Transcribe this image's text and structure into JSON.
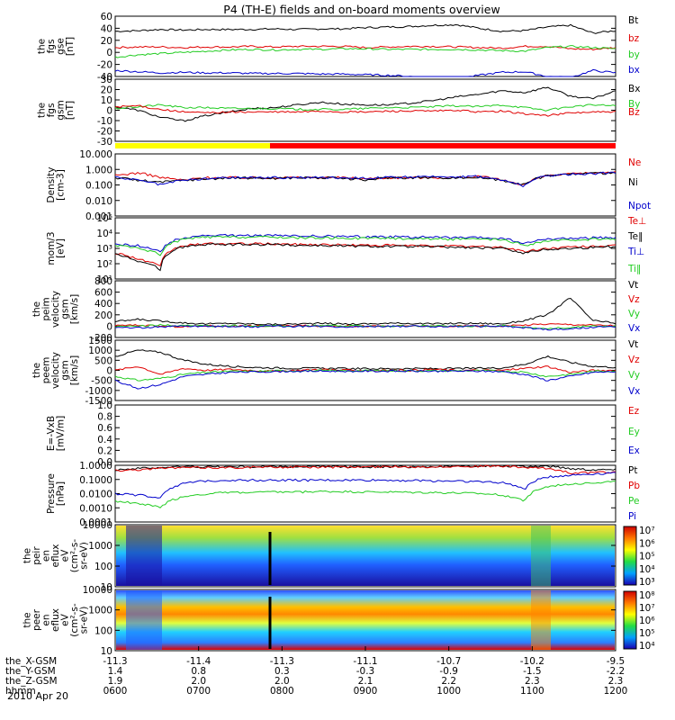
{
  "title": "P4 (TH-E) fields and on-board moments overview",
  "date_label": "2010 Apr 20",
  "colors": {
    "black": "#000000",
    "red": "#e00000",
    "green": "#22cc22",
    "blue": "#0000cc",
    "yellow": "#ffff00"
  },
  "chart_data": [
    {
      "type": "line",
      "panel": "fgs-gse",
      "ylabel": [
        "the",
        "fgs",
        "gse",
        "[nT]"
      ],
      "yticks": [
        "60",
        "40",
        "20",
        "0",
        "-20",
        "-40"
      ],
      "ylim": [
        -40,
        60
      ],
      "series": [
        {
          "name": "Bt",
          "color": "#000000",
          "values": [
            35,
            36,
            38,
            37,
            38,
            38,
            38,
            39,
            38,
            39,
            39,
            41,
            42,
            43,
            45,
            46,
            40,
            35,
            36,
            42,
            45,
            32,
            36
          ]
        },
        {
          "name": "bz",
          "color": "#e00000",
          "values": [
            8,
            9,
            9,
            8,
            9,
            9,
            10,
            9,
            10,
            10,
            10,
            8,
            9,
            10,
            10,
            9,
            8,
            7,
            10,
            10,
            6,
            5,
            8
          ]
        },
        {
          "name": "by",
          "color": "#22cc22",
          "values": [
            -8,
            -4,
            -2,
            0,
            2,
            4,
            5,
            4,
            5,
            5,
            6,
            6,
            5,
            5,
            5,
            5,
            4,
            3,
            2,
            8,
            10,
            8,
            6
          ]
        },
        {
          "name": "bx",
          "color": "#0000cc",
          "values": [
            -30,
            -32,
            -34,
            -33,
            -34,
            -34,
            -35,
            -35,
            -35,
            -36,
            -36,
            -37,
            -38,
            -40,
            -42,
            -44,
            -38,
            -33,
            -32,
            -40,
            -42,
            -30,
            -34
          ]
        }
      ]
    },
    {
      "type": "line",
      "panel": "fgs-gsm",
      "ylabel": [
        "the",
        "fgs",
        "gsm",
        "[nT]"
      ],
      "yticks": [
        "30",
        "20",
        "10",
        "0",
        "-10",
        "-20",
        "-30"
      ],
      "ylim": [
        -35,
        35
      ],
      "series": [
        {
          "name": "Bx",
          "color": "#000000",
          "values": [
            4,
            0,
            -8,
            -12,
            -6,
            -2,
            2,
            3,
            6,
            9,
            7,
            6,
            6,
            8,
            11,
            15,
            18,
            22,
            20,
            26,
            16,
            13,
            22
          ]
        },
        {
          "name": "By",
          "color": "#22cc22",
          "values": [
            2,
            4,
            6,
            3,
            3,
            2,
            2,
            2,
            1,
            1,
            1,
            2,
            3,
            3,
            4,
            5,
            4,
            6,
            3,
            0,
            4,
            6,
            5
          ]
        },
        {
          "name": "Bz",
          "color": "#e00000",
          "values": [
            4,
            5,
            1,
            -2,
            -3,
            -2,
            -2,
            -2,
            -2,
            -1,
            -2,
            -2,
            -1,
            -1,
            -1,
            0,
            -2,
            -1,
            -4,
            -6,
            -3,
            -2,
            -2
          ]
        }
      ]
    },
    {
      "type": "line",
      "panel": "density",
      "yscale": "log",
      "ylabel": [
        "Density",
        "[cm-3]"
      ],
      "yticks": [
        "10.000",
        "1.000",
        "0.100",
        "0.010",
        "0.001"
      ],
      "ylim": [
        0.001,
        10
      ],
      "series": [
        {
          "name": "Ne",
          "color": "#e00000",
          "values": [
            0.4,
            0.6,
            0.3,
            0.2,
            0.3,
            0.3,
            0.3,
            0.3,
            0.3,
            0.3,
            0.3,
            0.25,
            0.3,
            0.3,
            0.3,
            0.3,
            0.35,
            0.2,
            0.1,
            0.4,
            0.5,
            0.6,
            0.7
          ]
        },
        {
          "name": "Ni",
          "color": "#000000",
          "values": [
            0.3,
            0.2,
            0.15,
            0.2,
            0.25,
            0.28,
            0.28,
            0.27,
            0.3,
            0.29,
            0.27,
            0.2,
            0.3,
            0.3,
            0.3,
            0.3,
            0.3,
            0.2,
            0.1,
            0.4,
            0.5,
            0.55,
            0.6
          ]
        },
        {
          "name": "Npot",
          "color": "#0000cc",
          "values": [
            0.3,
            0.2,
            0.1,
            0.2,
            0.25,
            0.3,
            0.3,
            0.3,
            0.3,
            0.3,
            0.3,
            0.28,
            0.3,
            0.32,
            0.33,
            0.35,
            0.35,
            0.2,
            0.08,
            0.4,
            0.5,
            0.55,
            0.6
          ]
        }
      ]
    },
    {
      "type": "line",
      "panel": "temperature",
      "yscale": "log",
      "ylabel": [
        "mom/3",
        "[eV]"
      ],
      "yticks": [
        "10⁵",
        "10⁴",
        "10³",
        "10²",
        "10¹"
      ],
      "ylim": [
        10,
        100000
      ],
      "series": [
        {
          "name": "Te⊥",
          "color": "#e00000",
          "values": [
            500,
            200,
            60,
            1500,
            2000,
            2000,
            2000,
            2000,
            1800,
            1800,
            1700,
            1600,
            1600,
            1500,
            1500,
            1400,
            1300,
            1200,
            600,
            1000,
            1200,
            1400,
            1500
          ]
        },
        {
          "name": "Te‖",
          "color": "#000000",
          "values": [
            400,
            150,
            40,
            1300,
            1800,
            1800,
            1800,
            1800,
            1600,
            1600,
            1500,
            1400,
            1400,
            1300,
            1300,
            1200,
            1100,
            1000,
            500,
            900,
            1000,
            1200,
            1300
          ]
        },
        {
          "name": "Ti⊥",
          "color": "#0000cc",
          "values": [
            2000,
            1500,
            600,
            5000,
            7000,
            7000,
            7000,
            7000,
            6500,
            6500,
            6000,
            6000,
            6000,
            5500,
            5500,
            5000,
            5000,
            4500,
            2000,
            4000,
            4500,
            5000,
            5000
          ]
        },
        {
          "name": "Ti‖",
          "color": "#22cc22",
          "values": [
            1500,
            1000,
            400,
            4000,
            5500,
            5500,
            5500,
            5500,
            5000,
            5000,
            4800,
            4600,
            4600,
            4400,
            4400,
            4000,
            4000,
            3600,
            1500,
            3000,
            3500,
            4000,
            4000
          ]
        }
      ]
    },
    {
      "type": "line",
      "panel": "peim-velocity",
      "ylabel": [
        "the",
        "peim",
        "velocity",
        "gsm",
        "[km/s]"
      ],
      "yticks": [
        "800",
        "600",
        "400",
        "200",
        "0",
        "-200"
      ],
      "ylim": [
        -200,
        800
      ],
      "series": [
        {
          "name": "Vt",
          "color": "#000000",
          "values": [
            80,
            120,
            90,
            60,
            40,
            50,
            40,
            30,
            40,
            50,
            40,
            40,
            50,
            50,
            40,
            50,
            50,
            40,
            100,
            200,
            500,
            100,
            50
          ]
        },
        {
          "name": "Vz",
          "color": "#e00000",
          "values": [
            10,
            20,
            0,
            -10,
            10,
            0,
            5,
            0,
            10,
            0,
            5,
            0,
            0,
            5,
            0,
            0,
            5,
            0,
            20,
            40,
            30,
            20,
            10
          ]
        },
        {
          "name": "Vy",
          "color": "#22cc22",
          "values": [
            -10,
            0,
            20,
            10,
            0,
            10,
            0,
            5,
            0,
            10,
            0,
            5,
            0,
            0,
            5,
            0,
            0,
            10,
            -20,
            -40,
            -30,
            10,
            0
          ]
        },
        {
          "name": "Vx",
          "color": "#0000cc",
          "values": [
            -20,
            -30,
            -10,
            0,
            -5,
            0,
            -10,
            0,
            -5,
            0,
            -10,
            0,
            -5,
            0,
            -10,
            0,
            -5,
            0,
            -30,
            -60,
            -50,
            -20,
            -10
          ]
        }
      ]
    },
    {
      "type": "line",
      "panel": "peem-velocity",
      "ylabel": [
        "the",
        "peem",
        "velocity",
        "gsm",
        "[km/s]"
      ],
      "yticks": [
        "1500",
        "1000",
        "500",
        "0",
        "-500",
        "-1000",
        "-1500"
      ],
      "ylim": [
        -1500,
        1500
      ],
      "series": [
        {
          "name": "Vt",
          "color": "#000000",
          "values": [
            700,
            1000,
            900,
            500,
            300,
            200,
            150,
            120,
            100,
            100,
            90,
            80,
            80,
            90,
            80,
            90,
            100,
            120,
            300,
            700,
            400,
            200,
            150
          ]
        },
        {
          "name": "Vz",
          "color": "#e00000",
          "values": [
            0,
            200,
            -200,
            100,
            0,
            50,
            0,
            -50,
            0,
            50,
            0,
            0,
            0,
            0,
            50,
            0,
            0,
            0,
            100,
            200,
            -100,
            0,
            0
          ]
        },
        {
          "name": "Vy",
          "color": "#22cc22",
          "values": [
            -300,
            -500,
            -400,
            -200,
            -100,
            -50,
            -50,
            -30,
            -20,
            -20,
            -20,
            -20,
            -20,
            -20,
            -20,
            -20,
            -20,
            -30,
            -100,
            -300,
            -200,
            -50,
            -30
          ]
        },
        {
          "name": "Vx",
          "color": "#0000cc",
          "values": [
            -500,
            -900,
            -700,
            -300,
            -200,
            -100,
            -80,
            -60,
            -40,
            -40,
            -40,
            -40,
            -40,
            -40,
            -40,
            -40,
            -40,
            -60,
            -200,
            -500,
            -300,
            -100,
            -60
          ]
        }
      ]
    },
    {
      "type": "line",
      "panel": "exb",
      "ylabel": [
        "E=-VxB",
        "[mV/m]"
      ],
      "yticks": [
        "1.0",
        "0.8",
        "0.6",
        "0.4",
        "0.2",
        "0.0"
      ],
      "ylim": [
        0,
        1
      ],
      "series": [
        {
          "name": "Ez",
          "color": "#e00000",
          "values": []
        },
        {
          "name": "Ey",
          "color": "#22cc22",
          "values": []
        },
        {
          "name": "Ex",
          "color": "#0000cc",
          "values": []
        }
      ]
    },
    {
      "type": "line",
      "panel": "pressure",
      "yscale": "log",
      "ylabel": [
        "Pressure",
        "[nPa]"
      ],
      "yticks": [
        "1.0000",
        "0.1000",
        "0.0100",
        "0.0010",
        "0.0001"
      ],
      "ylim": [
        0.0001,
        1
      ],
      "series": [
        {
          "name": "Pt",
          "color": "#000000",
          "values": [
            0.5,
            0.6,
            0.7,
            0.8,
            0.8,
            0.8,
            0.8,
            0.8,
            0.8,
            0.8,
            0.8,
            0.8,
            0.8,
            0.8,
            0.8,
            0.9,
            0.9,
            0.9,
            0.8,
            0.9,
            0.6,
            0.5,
            0.5
          ]
        },
        {
          "name": "Pb",
          "color": "#e00000",
          "values": [
            0.45,
            0.5,
            0.6,
            0.7,
            0.7,
            0.7,
            0.75,
            0.75,
            0.75,
            0.75,
            0.75,
            0.78,
            0.8,
            0.8,
            0.8,
            0.85,
            0.85,
            0.88,
            0.7,
            0.6,
            0.3,
            0.3,
            0.35
          ]
        },
        {
          "name": "Pe",
          "color": "#22cc22",
          "values": [
            0.003,
            0.002,
            0.001,
            0.006,
            0.01,
            0.012,
            0.012,
            0.013,
            0.013,
            0.014,
            0.014,
            0.013,
            0.013,
            0.012,
            0.012,
            0.011,
            0.01,
            0.008,
            0.003,
            0.03,
            0.05,
            0.06,
            0.07
          ]
        },
        {
          "name": "Pi",
          "color": "#0000cc",
          "values": [
            0.01,
            0.008,
            0.005,
            0.05,
            0.08,
            0.09,
            0.09,
            0.09,
            0.09,
            0.09,
            0.09,
            0.09,
            0.09,
            0.085,
            0.08,
            0.08,
            0.07,
            0.06,
            0.02,
            0.15,
            0.2,
            0.25,
            0.3
          ]
        }
      ]
    },
    {
      "type": "heatmap",
      "panel": "peir-eflux",
      "yscale": "log",
      "ylabel": [
        "the",
        "peir",
        "en",
        "eflux",
        "eV",
        "(cm²-s-",
        "sr-eV)"
      ],
      "yticks": [
        "10000",
        "1000",
        "100",
        "10"
      ],
      "ylim": [
        10,
        30000
      ],
      "colorbar_ticks": [
        "10⁷",
        "10⁶",
        "10⁵",
        "10⁴",
        "10³"
      ]
    },
    {
      "type": "heatmap",
      "panel": "peer-eflux",
      "yscale": "log",
      "ylabel": [
        "the",
        "peer",
        "en",
        "eflux",
        "eV",
        "(cm²-s-",
        "sr-eV)"
      ],
      "yticks": [
        "10000",
        "1000",
        "100",
        "10"
      ],
      "ylim": [
        10,
        30000
      ],
      "colorbar_ticks": [
        "10⁸",
        "10⁷",
        "10⁶",
        "10⁵",
        "10⁴"
      ]
    }
  ],
  "xaxis": {
    "rows": [
      {
        "label": "the_X-GSM",
        "values": [
          "-11.3",
          "-11.4",
          "-11.3",
          "-11.1",
          "-10.7",
          "-10.2",
          "-9.5"
        ]
      },
      {
        "label": "the_Y-GSM",
        "values": [
          "1.4",
          "0.8",
          "0.3",
          "-0.3",
          "-0.9",
          "-1.5",
          "-2.2"
        ]
      },
      {
        "label": "the_Z-GSM",
        "values": [
          "1.9",
          "2.0",
          "2.0",
          "2.1",
          "2.2",
          "2.3",
          "2.3"
        ]
      },
      {
        "label": "hhmm",
        "values": [
          "0600",
          "0700",
          "0800",
          "0900",
          "1000",
          "1100",
          "1200"
        ]
      }
    ]
  }
}
